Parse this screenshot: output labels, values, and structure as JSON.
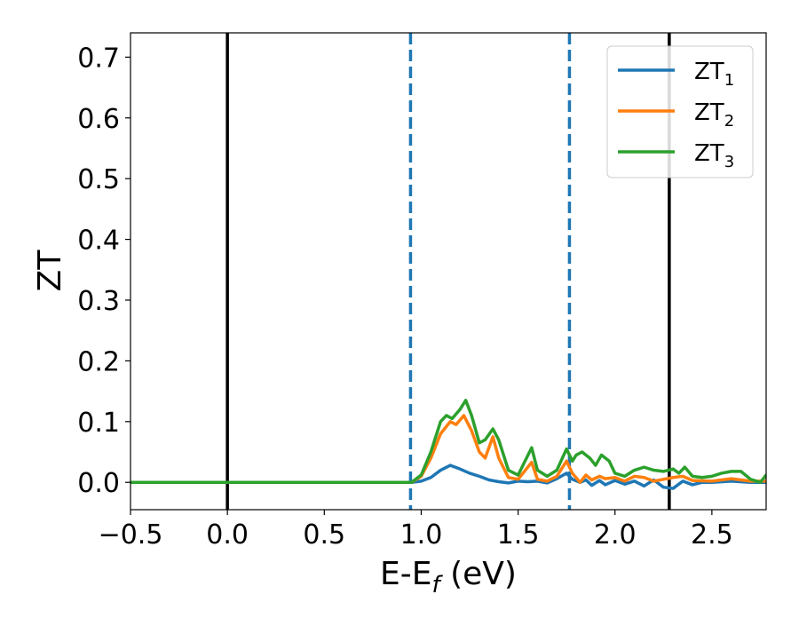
{
  "chart_data": {
    "type": "line",
    "xlabel_main": "E-E",
    "xlabel_sub": "f",
    "xlabel_unit": " (eV)",
    "ylabel": "ZT",
    "xlim": [
      -0.5,
      2.78
    ],
    "ylim": [
      -0.045,
      0.74
    ],
    "xticks": [
      -0.5,
      0.0,
      0.5,
      1.0,
      1.5,
      2.0,
      2.5
    ],
    "xtick_labels": [
      "−0.5",
      "0.0",
      "0.5",
      "1.0",
      "1.5",
      "2.0",
      "2.5"
    ],
    "yticks": [
      0.0,
      0.1,
      0.2,
      0.3,
      0.4,
      0.5,
      0.6,
      0.7
    ],
    "ytick_labels": [
      "0.0",
      "0.1",
      "0.2",
      "0.3",
      "0.4",
      "0.5",
      "0.6",
      "0.7"
    ],
    "grid": false,
    "legend_position": "top-right",
    "vertical_lines": [
      {
        "x": 0.0,
        "style": "solid",
        "color": "#000000"
      },
      {
        "x": 2.28,
        "style": "solid",
        "color": "#000000"
      },
      {
        "x": 0.945,
        "style": "dashed",
        "color": "#1f77b4"
      },
      {
        "x": 1.765,
        "style": "dashed",
        "color": "#1f77b4"
      }
    ],
    "series": [
      {
        "name": "ZT",
        "subscript": "1",
        "color": "#1f77b4",
        "points": [
          [
            -0.5,
            0
          ],
          [
            0.9,
            0
          ],
          [
            0.95,
            0
          ],
          [
            1.0,
            0.002
          ],
          [
            1.05,
            0.008
          ],
          [
            1.1,
            0.02
          ],
          [
            1.15,
            0.028
          ],
          [
            1.2,
            0.022
          ],
          [
            1.25,
            0.015
          ],
          [
            1.3,
            0.01
          ],
          [
            1.35,
            0.004
          ],
          [
            1.4,
            0.001
          ],
          [
            1.45,
            -0.001
          ],
          [
            1.5,
            0.002
          ],
          [
            1.55,
            0.001
          ],
          [
            1.6,
            0.002
          ],
          [
            1.65,
            -0.001
          ],
          [
            1.7,
            0.006
          ],
          [
            1.75,
            0.015
          ],
          [
            1.78,
            0.005
          ],
          [
            1.82,
            0.0
          ],
          [
            1.85,
            0.004
          ],
          [
            1.88,
            -0.005
          ],
          [
            1.92,
            0.003
          ],
          [
            1.95,
            -0.004
          ],
          [
            2.0,
            0.003
          ],
          [
            2.05,
            -0.003
          ],
          [
            2.1,
            0.002
          ],
          [
            2.15,
            -0.006
          ],
          [
            2.2,
            0.004
          ],
          [
            2.25,
            -0.008
          ],
          [
            2.3,
            -0.01
          ],
          [
            2.35,
            0.002
          ],
          [
            2.4,
            -0.004
          ],
          [
            2.45,
            0.0
          ],
          [
            2.5,
            0.0
          ],
          [
            2.6,
            0.002
          ],
          [
            2.7,
            0.0
          ],
          [
            2.78,
            0.0
          ]
        ]
      },
      {
        "name": "ZT",
        "subscript": "2",
        "color": "#ff7f0e",
        "points": [
          [
            -0.5,
            0
          ],
          [
            0.9,
            0
          ],
          [
            0.95,
            0
          ],
          [
            1.0,
            0.01
          ],
          [
            1.05,
            0.04
          ],
          [
            1.1,
            0.08
          ],
          [
            1.15,
            0.1
          ],
          [
            1.18,
            0.095
          ],
          [
            1.22,
            0.11
          ],
          [
            1.26,
            0.085
          ],
          [
            1.3,
            0.05
          ],
          [
            1.33,
            0.04
          ],
          [
            1.37,
            0.075
          ],
          [
            1.4,
            0.04
          ],
          [
            1.45,
            0.008
          ],
          [
            1.5,
            0.005
          ],
          [
            1.57,
            0.033
          ],
          [
            1.6,
            0.005
          ],
          [
            1.65,
            0.002
          ],
          [
            1.7,
            0.01
          ],
          [
            1.75,
            0.035
          ],
          [
            1.78,
            0.015
          ],
          [
            1.82,
            0.0
          ],
          [
            1.85,
            0.012
          ],
          [
            1.88,
            0.004
          ],
          [
            1.92,
            0.01
          ],
          [
            1.95,
            0.006
          ],
          [
            2.0,
            0.008
          ],
          [
            2.05,
            0.002
          ],
          [
            2.1,
            0.01
          ],
          [
            2.15,
            0.008
          ],
          [
            2.2,
            0.002
          ],
          [
            2.25,
            0.005
          ],
          [
            2.3,
            0.008
          ],
          [
            2.35,
            0.01
          ],
          [
            2.4,
            0.003
          ],
          [
            2.5,
            0.002
          ],
          [
            2.6,
            0.006
          ],
          [
            2.7,
            0.002
          ],
          [
            2.78,
            0.002
          ]
        ]
      },
      {
        "name": "ZT",
        "subscript": "3",
        "color": "#2ca02c",
        "points": [
          [
            -0.5,
            0
          ],
          [
            0.9,
            0
          ],
          [
            0.95,
            0
          ],
          [
            1.0,
            0.012
          ],
          [
            1.05,
            0.05
          ],
          [
            1.1,
            0.1
          ],
          [
            1.13,
            0.11
          ],
          [
            1.16,
            0.105
          ],
          [
            1.2,
            0.12
          ],
          [
            1.23,
            0.135
          ],
          [
            1.26,
            0.11
          ],
          [
            1.3,
            0.065
          ],
          [
            1.33,
            0.07
          ],
          [
            1.37,
            0.088
          ],
          [
            1.4,
            0.07
          ],
          [
            1.45,
            0.02
          ],
          [
            1.5,
            0.012
          ],
          [
            1.57,
            0.057
          ],
          [
            1.6,
            0.02
          ],
          [
            1.65,
            0.01
          ],
          [
            1.7,
            0.02
          ],
          [
            1.75,
            0.055
          ],
          [
            1.78,
            0.035
          ],
          [
            1.8,
            0.045
          ],
          [
            1.83,
            0.05
          ],
          [
            1.87,
            0.04
          ],
          [
            1.9,
            0.028
          ],
          [
            1.93,
            0.045
          ],
          [
            1.97,
            0.035
          ],
          [
            2.0,
            0.015
          ],
          [
            2.05,
            0.01
          ],
          [
            2.1,
            0.02
          ],
          [
            2.15,
            0.025
          ],
          [
            2.2,
            0.02
          ],
          [
            2.25,
            0.018
          ],
          [
            2.3,
            0.022
          ],
          [
            2.33,
            0.015
          ],
          [
            2.36,
            0.025
          ],
          [
            2.4,
            0.01
          ],
          [
            2.45,
            0.008
          ],
          [
            2.5,
            0.01
          ],
          [
            2.55,
            0.015
          ],
          [
            2.6,
            0.018
          ],
          [
            2.65,
            0.018
          ],
          [
            2.7,
            0.005
          ],
          [
            2.75,
            0.0
          ],
          [
            2.78,
            0.012
          ]
        ]
      }
    ]
  }
}
